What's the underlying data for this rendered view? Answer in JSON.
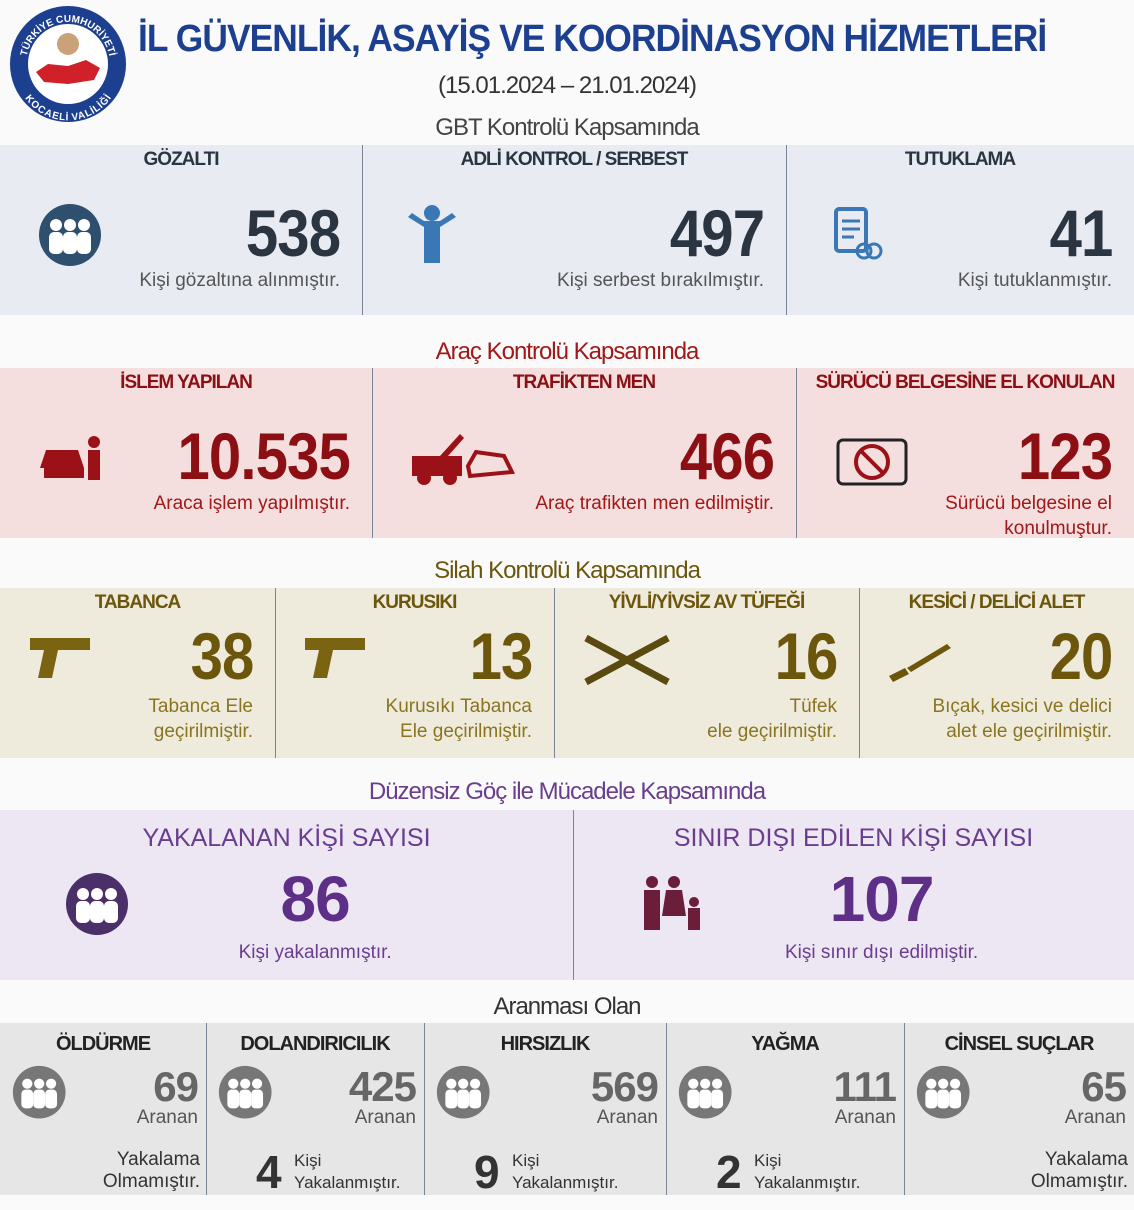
{
  "header": {
    "emblem_top": "TÜRKİYE CUMHURİYETİ",
    "emblem_bottom": "KOCAELİ VALİLİĞİ",
    "title": "İL GÜVENLİK, ASAYİŞ VE KOORDİNASYON HİZMETLERİ",
    "dates": "(15.01.2024 – 21.01.2024)"
  },
  "sections": [
    {
      "title": "GBT Kontrolü Kapsamında",
      "items": [
        {
          "label": "GÖZALTI",
          "value": "538",
          "desc": [
            "Kişi gözaltına alınmıştır."
          ]
        },
        {
          "label": "ADLİ KONTROL / SERBEST",
          "value": "497",
          "desc": [
            "Kişi serbest bırakılmıştır."
          ]
        },
        {
          "label": "TUTUKLAMA",
          "value": "41",
          "desc": [
            "Kişi tutuklanmıştır."
          ]
        }
      ]
    },
    {
      "title": "Araç Kontrolü Kapsamında",
      "items": [
        {
          "label": "İSLEM YAPILAN",
          "value": "10.535",
          "desc": [
            "Araca işlem yapılmıştır."
          ]
        },
        {
          "label": "TRAFİKTEN MEN",
          "value": "466",
          "desc": [
            "Araç trafikten men edilmiştir."
          ]
        },
        {
          "label": "SÜRÜCÜ BELGESİNE EL KONULAN",
          "value": "123",
          "desc": [
            "Sürücü belgesine el",
            "konulmuştur."
          ]
        }
      ]
    },
    {
      "title": "Silah Kontrolü Kapsamında",
      "items": [
        {
          "label": "TABANCA",
          "value": "38",
          "desc": [
            "Tabanca Ele",
            "geçirilmiştir."
          ]
        },
        {
          "label": "KURUSIKI",
          "value": "13",
          "desc": [
            "Kurusıkı Tabanca",
            "Ele geçirilmiştir."
          ]
        },
        {
          "label": "YİVLİ/YİVSİZ AV TÜFEĞİ",
          "value": "16",
          "desc": [
            "Tüfek",
            "ele geçirilmiştir."
          ]
        },
        {
          "label": "KESİCİ / DELİCİ ALET",
          "value": "20",
          "desc": [
            "Bıçak, kesici ve delici",
            "alet ele geçirilmiştir."
          ]
        }
      ]
    },
    {
      "title": "Düzensiz Göç ile Mücadele Kapsamında",
      "items": [
        {
          "label": "YAKALANAN KİŞİ SAYISI",
          "value": "86",
          "desc": [
            "Kişi yakalanmıştır."
          ]
        },
        {
          "label": "SINIR DIŞI EDİLEN KİŞİ SAYISI",
          "value": "107",
          "desc": [
            "Kişi sınır dışı edilmiştir."
          ]
        }
      ]
    },
    {
      "title": "Aranması Olan",
      "items": [
        {
          "label": "ÖLDÜRME",
          "value": "69",
          "value_text": "Aranan",
          "desc": [
            "Yakalama",
            "Olmamıştır."
          ]
        },
        {
          "label": "DOLANDIRICILIK",
          "value": "425",
          "value_text": "Aranan",
          "caught": "4",
          "desc": [
            "Kişi",
            "Yakalanmıştır."
          ]
        },
        {
          "label": "HIRSIZLIK",
          "value": "569",
          "value_text": "Aranan",
          "caught": "9",
          "desc": [
            "Kişi",
            "Yakalanmıştır."
          ]
        },
        {
          "label": "YAĞMA",
          "value": "111",
          "value_text": "Aranan",
          "caught": "2",
          "desc": [
            "Kişi",
            "Yakalanmıştır."
          ]
        },
        {
          "label": "CİNSEL SUÇLAR",
          "value": "65",
          "value_text": "Aranan",
          "desc": [
            "Yakalama",
            "Olmamıştır."
          ]
        }
      ]
    }
  ]
}
